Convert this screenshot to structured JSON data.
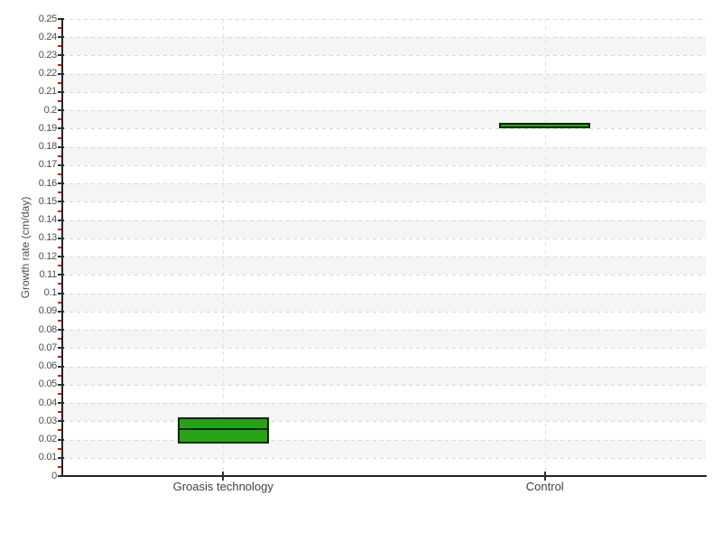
{
  "page": {
    "background": "#ffffff"
  },
  "chart_data": {
    "type": "boxplot",
    "title": "",
    "xlabel": "",
    "ylabel": "Growth rate (cm/day)",
    "categories": [
      "Groasis technology",
      "Control"
    ],
    "ylim": [
      0,
      0.25
    ],
    "ytick_step": 0.01,
    "minor_ytick_step": 0.005,
    "ytick_labels": [
      "0",
      "0.01",
      "0.02",
      "0.03",
      "0.04",
      "0.05",
      "0.06",
      "0.07",
      "0.08",
      "0.09",
      "0.1",
      "0.11",
      "0.12",
      "0.13",
      "0.14",
      "0.15",
      "0.16",
      "0.17",
      "0.18",
      "0.19",
      "0.2",
      "0.21",
      "0.22",
      "0.23",
      "0.24",
      "0.25"
    ],
    "grid": {
      "horizontal": "dashed line at every 0.01",
      "vertical": "dashed line at each category center",
      "row_bands": "alternating white / light-gray bands of 0.01 height, gray from 0.01-0.02 upward"
    },
    "legend": null,
    "boxes": [
      {
        "category": "Groasis technology",
        "min": 0.018,
        "median": 0.026,
        "max": 0.032
      },
      {
        "category": "Control",
        "min": 0.19,
        "median": 0.191,
        "max": 0.193
      }
    ],
    "style": {
      "box_fill": "#27a313",
      "box_border": "#082800",
      "band_color": "#f5f5f5",
      "hgrid_color": "#d8d8d8",
      "vgrid_color": "#e0e0e0",
      "axis_color": "#222222",
      "major_tick_color": "#2e2e2e",
      "minor_tick_color": "#dd1100",
      "tick_label_color": "#4d4d4d"
    }
  }
}
